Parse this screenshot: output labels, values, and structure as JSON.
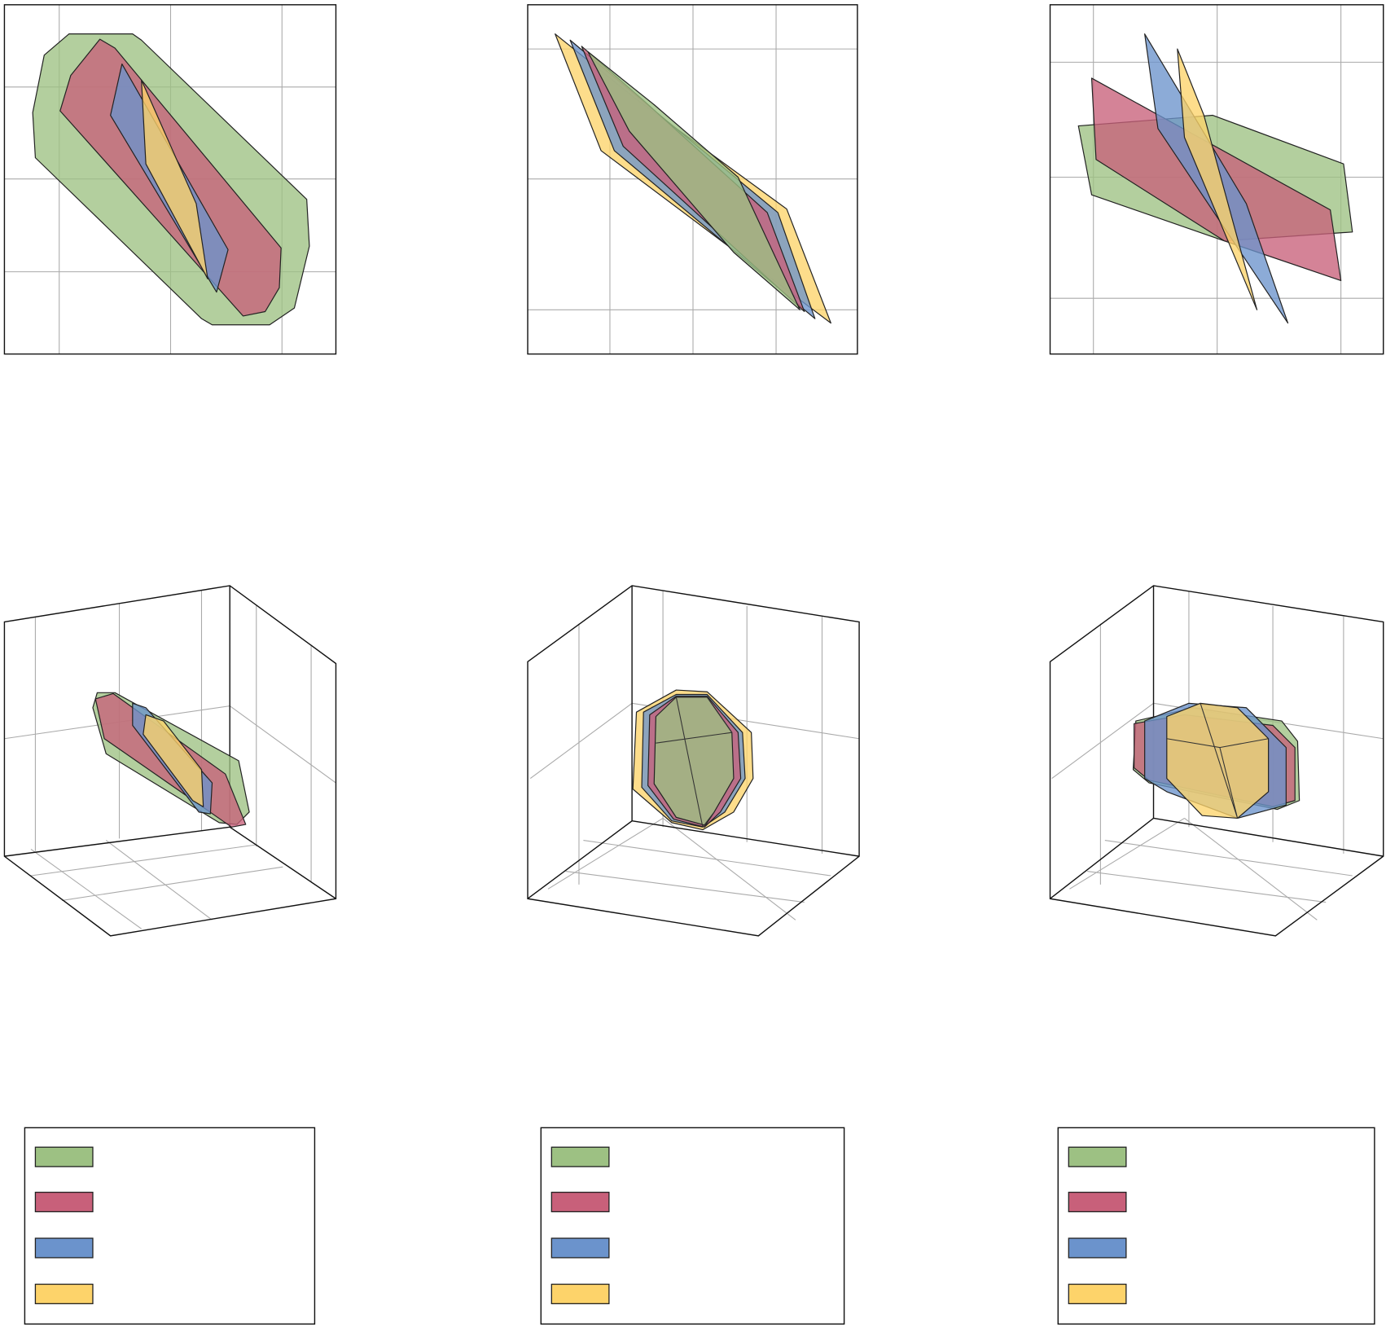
{
  "colors": [
    "#9dc183",
    "#c8607a",
    "#6b93cc",
    "#fdd36a"
  ]
}
